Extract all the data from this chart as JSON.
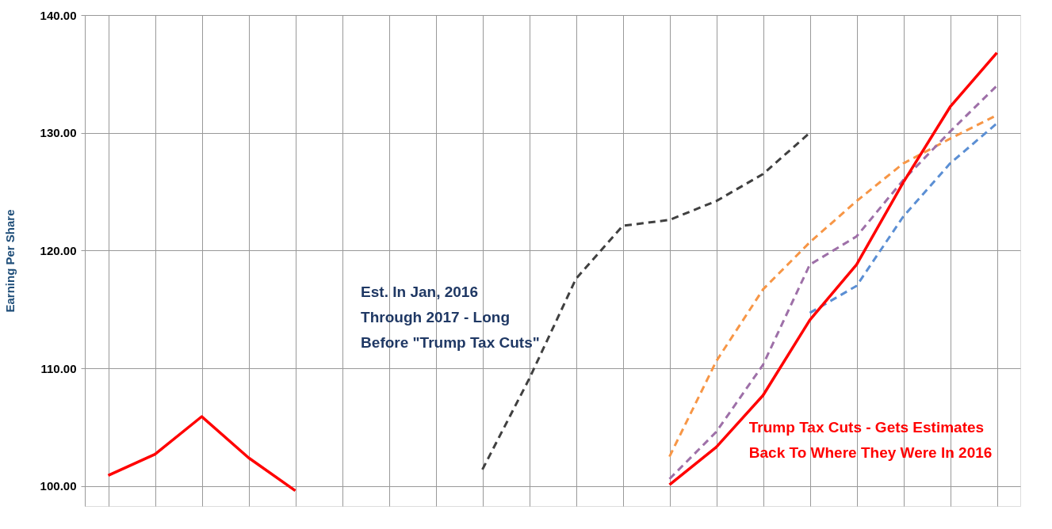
{
  "chart_data": {
    "type": "line",
    "categories": [
      null,
      null,
      null,
      null,
      null,
      null,
      null,
      null,
      null,
      null,
      null,
      null,
      null,
      null,
      null,
      null,
      null,
      null,
      null,
      null
    ],
    "ylabel": "Earning Per Share",
    "ylim": [
      98.3,
      140
    ],
    "yticks": [
      {
        "value": 100,
        "label": "100.00"
      },
      {
        "value": 110,
        "label": "110.00"
      },
      {
        "value": 120,
        "label": "120.00"
      },
      {
        "value": 130,
        "label": "130.00"
      },
      {
        "value": 140,
        "label": "140.00"
      }
    ],
    "grid": true,
    "tick_labels": "y",
    "series": [
      {
        "color": "#404040",
        "line_style": "dashed",
        "values": [
          null,
          null,
          null,
          null,
          null,
          null,
          null,
          null,
          101.4,
          109.1,
          117.6,
          122.1,
          122.6,
          124.2,
          126.5,
          130.0,
          null,
          null,
          null,
          null
        ]
      },
      {
        "color": "#f79646",
        "line_style": "dashed",
        "values": [
          null,
          null,
          null,
          null,
          null,
          null,
          null,
          null,
          null,
          null,
          null,
          null,
          102.5,
          110.6,
          116.7,
          120.7,
          124.2,
          127.4,
          129.5,
          131.5
        ]
      },
      {
        "color": "#5b8fd4",
        "line_style": "dashed",
        "values": [
          null,
          null,
          null,
          null,
          null,
          null,
          null,
          null,
          null,
          null,
          null,
          null,
          null,
          null,
          null,
          114.7,
          117.0,
          122.9,
          127.4,
          130.8
        ]
      },
      {
        "color": "#9e70a8",
        "line_style": "dashed",
        "values": [
          null,
          null,
          null,
          null,
          null,
          null,
          null,
          null,
          null,
          null,
          null,
          null,
          100.6,
          104.6,
          110.3,
          118.8,
          121.2,
          126.0,
          130.1,
          134.0
        ]
      },
      {
        "color": "#ff0000",
        "line_style": "solid",
        "values": [
          100.9,
          102.7,
          105.9,
          102.4,
          99.6,
          null,
          null,
          null,
          null,
          null,
          null,
          null,
          100.1,
          103.3,
          107.7,
          114.1,
          118.8,
          125.8,
          132.2,
          136.8
        ]
      }
    ],
    "annotations": [
      "Est. In Jan, 2016\nThrough 2017 - Long\nBefore \"Trump Tax Cuts\"",
      "Trump Tax Cuts - Gets Estimates\nBack To Where They Were In 2016"
    ]
  }
}
